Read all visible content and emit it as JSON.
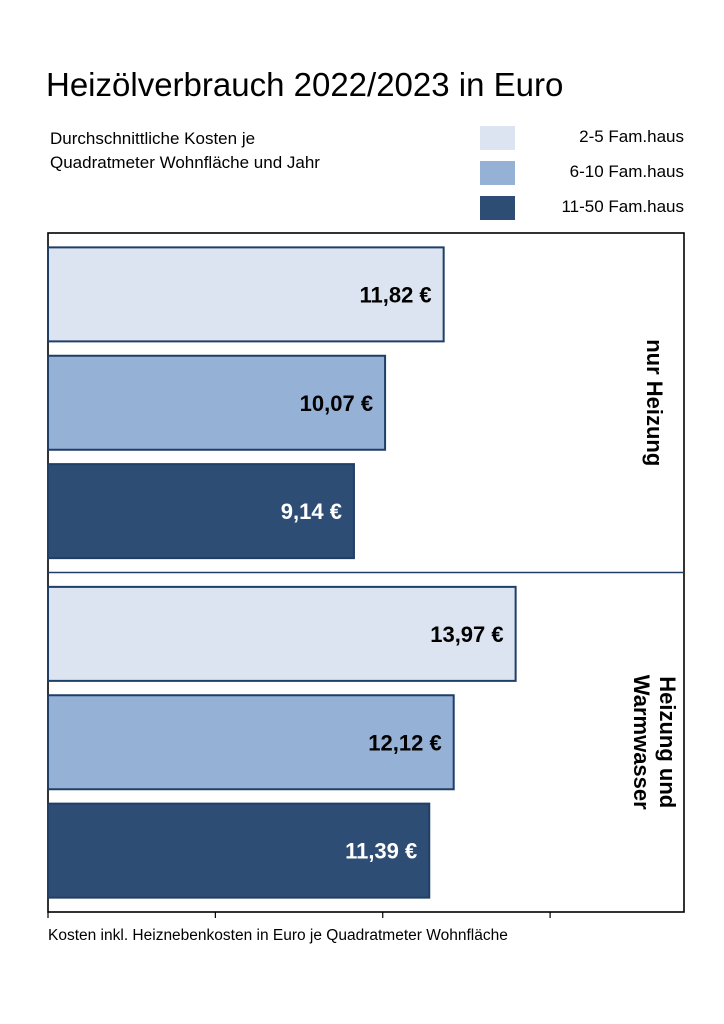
{
  "title": "Heizölverbrauch 2022/2023 in Euro",
  "subtitle_lines": [
    "Durchschnittliche Kosten je",
    "Quadratmeter Wohnfläche und Jahr"
  ],
  "legend": [
    {
      "label": "2-5 Fam.haus",
      "color": "#dbe4f0"
    },
    {
      "label": "6-10 Fam.haus",
      "color": "#95b1d6"
    },
    {
      "label": "11-50 Fam.haus",
      "color": "#2e4d74"
    }
  ],
  "xlabel": "Kosten inkl. Heiznebenkosten in Euro je Quadratmeter Wohnfläche",
  "chart_data": {
    "type": "bar",
    "orientation": "horizontal",
    "title": "Heizölverbrauch 2022/2023 in Euro",
    "subtitle": "Durchschnittliche Kosten je Quadratmeter Wohnfläche und Jahr",
    "xlabel": "Kosten inkl. Heiznebenkosten in Euro je Quadratmeter Wohnfläche",
    "xlim": [
      0,
      19
    ],
    "grid": false,
    "legend_position": "top-right",
    "groups": [
      {
        "label_lines": [
          "nur Heizung"
        ]
      },
      {
        "label_lines": [
          "Heizung und",
          "Warmwasser"
        ]
      }
    ],
    "series": [
      {
        "name": "2-5 Fam.haus",
        "color": "#dbe4f0",
        "text_color": "#000000",
        "values": [
          11.82,
          13.97
        ],
        "labels": [
          "11,82 €",
          "13,97 €"
        ]
      },
      {
        "name": "6-10 Fam.haus",
        "color": "#95b1d6",
        "text_color": "#000000",
        "values": [
          10.07,
          12.12
        ],
        "labels": [
          "10,07 €",
          "12,12 €"
        ]
      },
      {
        "name": "11-50 Fam.haus",
        "color": "#2e4d74",
        "text_color": "#ffffff",
        "values": [
          9.14,
          11.39
        ],
        "labels": [
          "9,14 €",
          "11,39 €"
        ]
      }
    ]
  }
}
